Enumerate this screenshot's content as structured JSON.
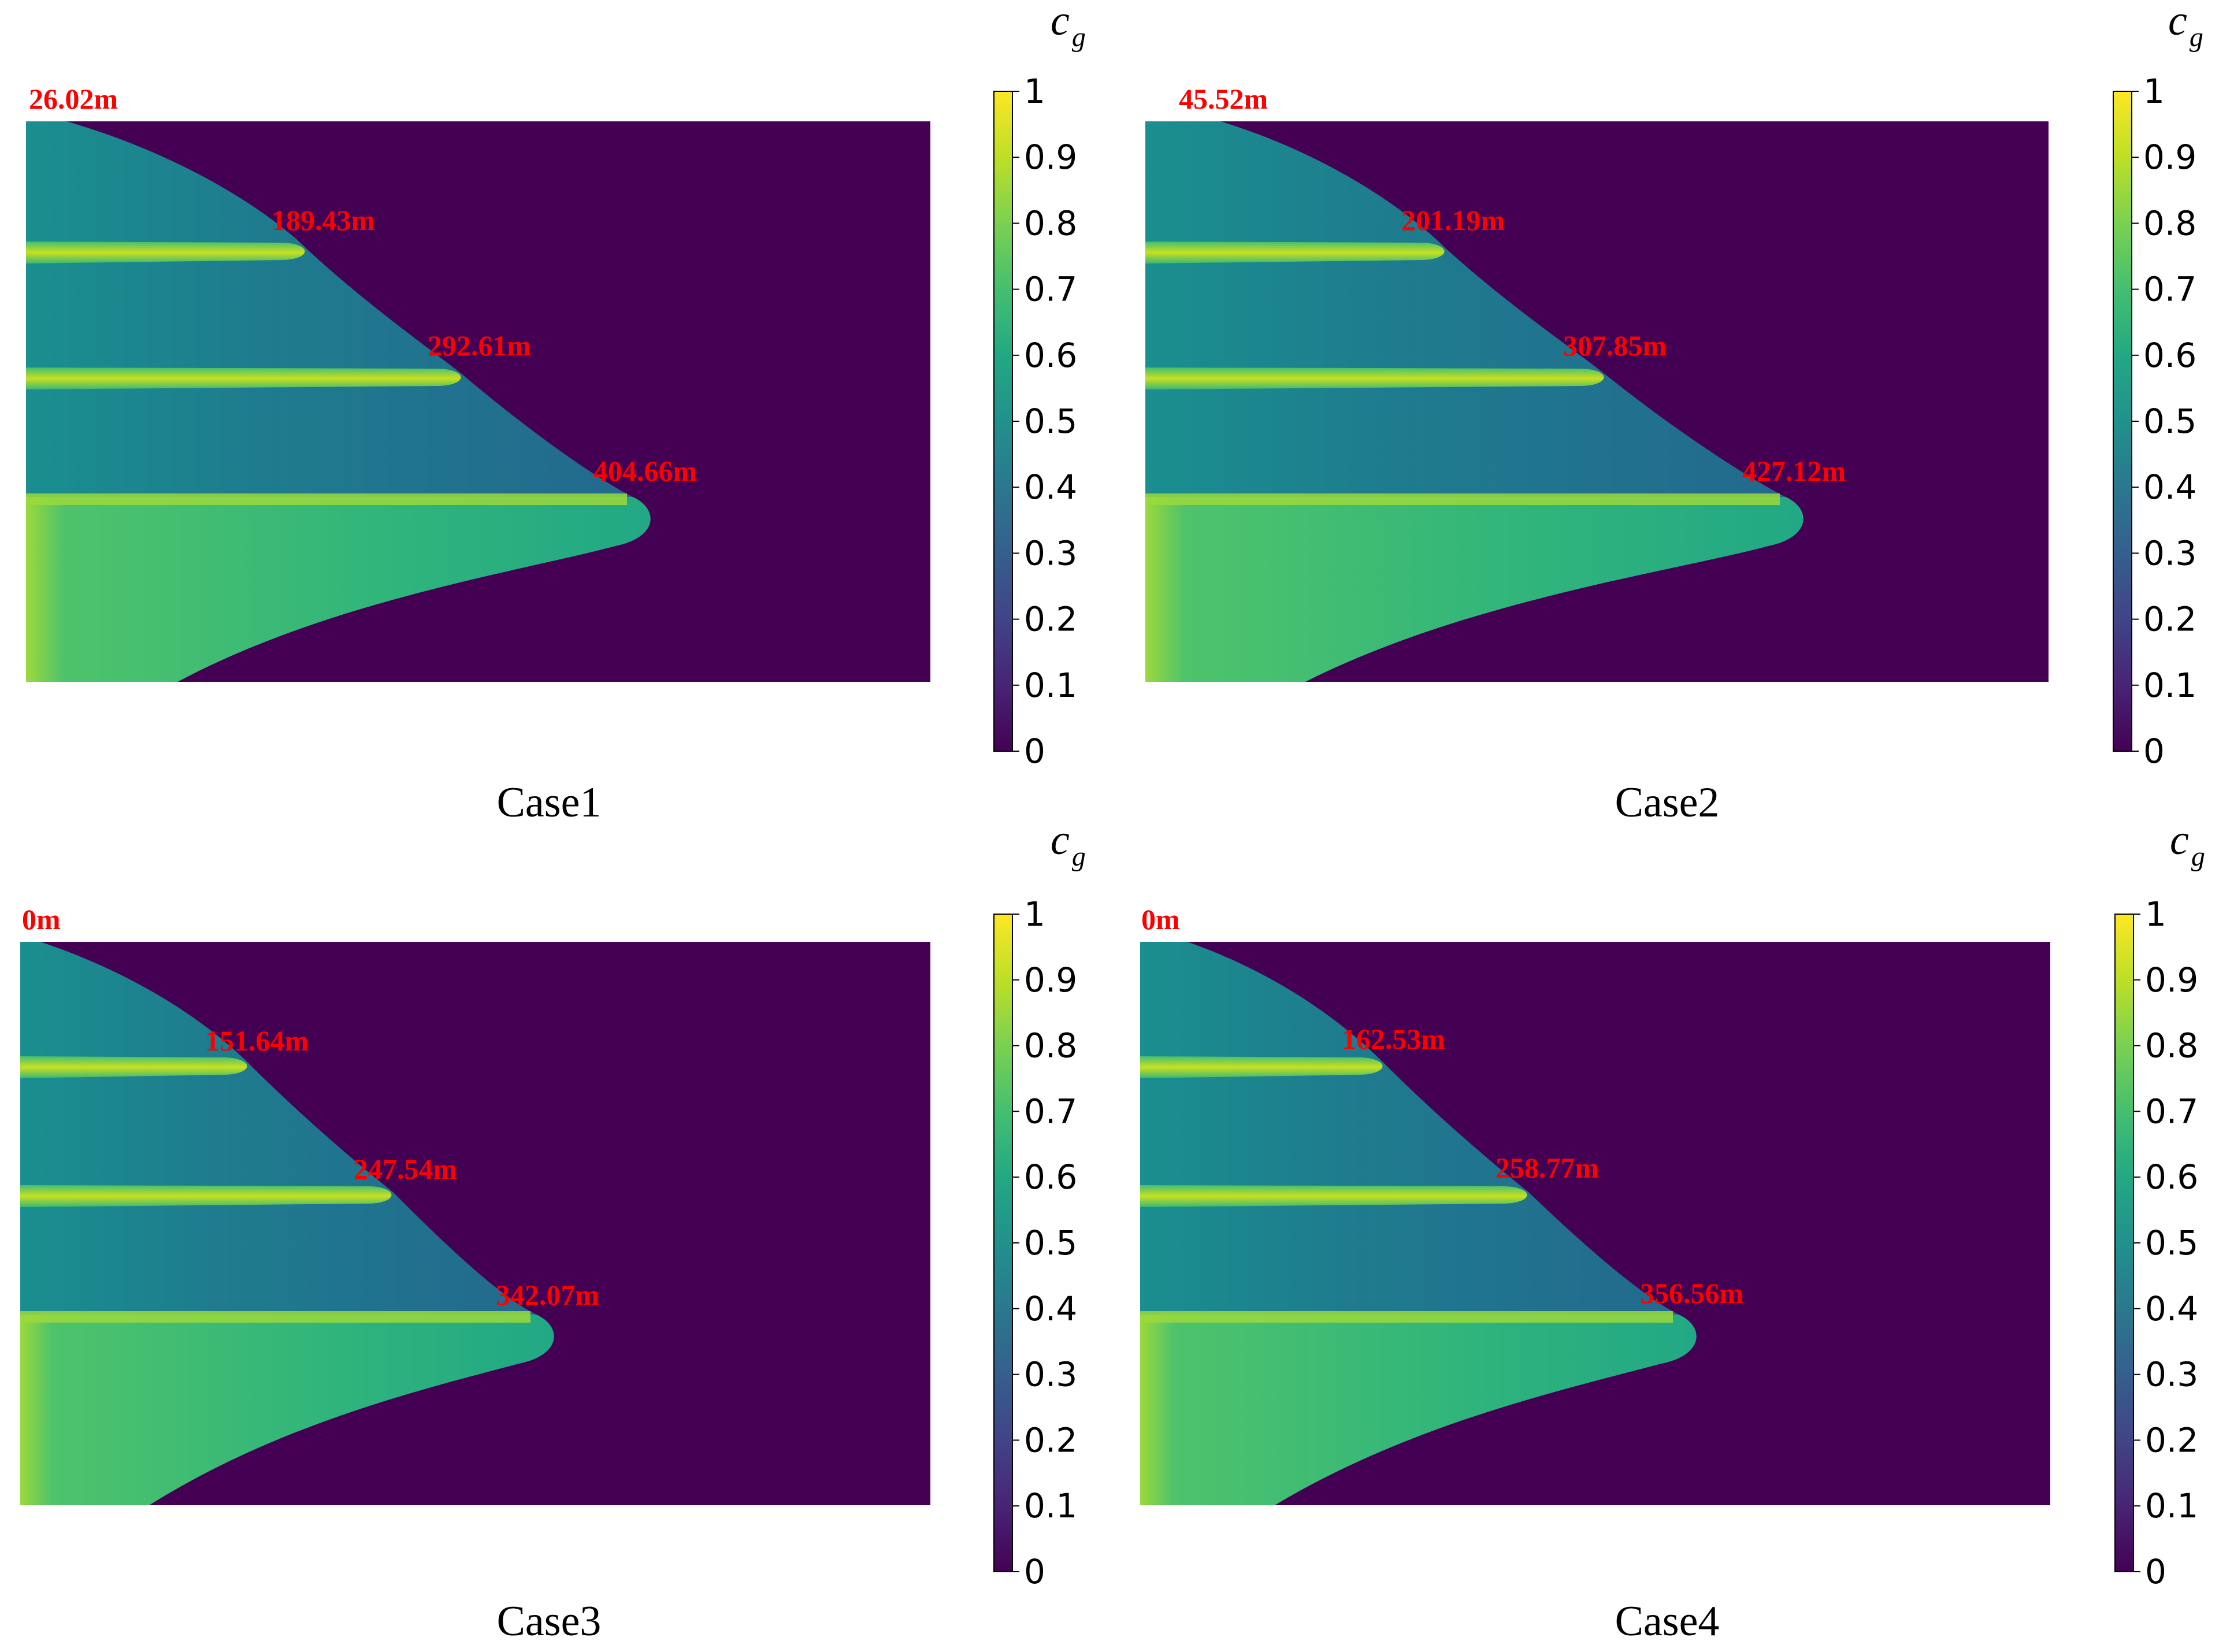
{
  "chart_data": {
    "type": "heatmap",
    "colorscale": "viridis",
    "colorbar": {
      "label_main": "c",
      "label_sub": "g",
      "range": [
        0,
        1
      ],
      "ticks": [
        "0",
        "0.1",
        "0.2",
        "0.3",
        "0.4",
        "0.5",
        "0.6",
        "0.7",
        "0.8",
        "0.9",
        "1"
      ]
    },
    "annotation_color": "#ff0000",
    "panels": [
      {
        "title": "Case1",
        "annotations": [
          "26.02m",
          "189.43m",
          "292.61m",
          "404.66m"
        ]
      },
      {
        "title": "Case2",
        "annotations": [
          "45.52m",
          "201.19m",
          "307.85m",
          "427.12m"
        ]
      },
      {
        "title": "Case3",
        "annotations": [
          "0m",
          "151.64m",
          "247.54m",
          "342.07m"
        ]
      },
      {
        "title": "Case4",
        "annotations": [
          "0m",
          "162.53m",
          "258.77m",
          "356.56m"
        ]
      }
    ]
  }
}
